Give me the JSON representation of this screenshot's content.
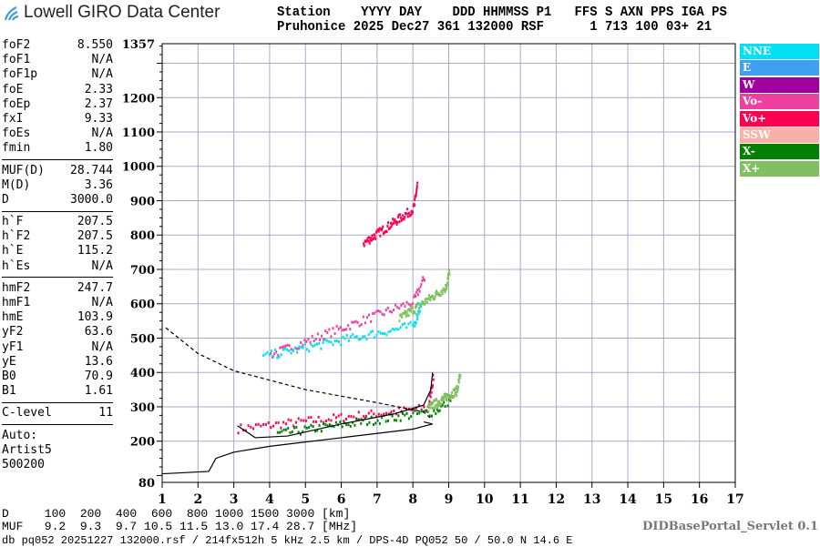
{
  "header": {
    "logo_text": "Lowell GIRO Data Center",
    "line1": "Station    YYYY DAY    DDD HHMMSS P1   FFS S AXN PPS IGA PS",
    "line2": "Pruhonice 2025 Dec27 361 132000 RSF      1 713 100 03+ 21"
  },
  "params": [
    [
      {
        "k": "foF2",
        "v": "8.550"
      },
      {
        "k": "foF1",
        "v": "N/A"
      },
      {
        "k": "foF1p",
        "v": "N/A"
      },
      {
        "k": "foE",
        "v": "2.33"
      },
      {
        "k": "foEp",
        "v": "2.37"
      },
      {
        "k": "fxI",
        "v": "9.33"
      },
      {
        "k": "foEs",
        "v": "N/A"
      },
      {
        "k": "fmin",
        "v": "1.80"
      }
    ],
    [
      {
        "k": "MUF(D)",
        "v": "28.744"
      },
      {
        "k": "M(D)",
        "v": "3.36"
      },
      {
        "k": "D",
        "v": "3000.0"
      }
    ],
    [
      {
        "k": "h`F",
        "v": "207.5"
      },
      {
        "k": "h`F2",
        "v": "207.5"
      },
      {
        "k": "h`E",
        "v": "115.2"
      },
      {
        "k": "h`Es",
        "v": "N/A"
      }
    ],
    [
      {
        "k": "hmF2",
        "v": "247.7"
      },
      {
        "k": "hmF1",
        "v": "N/A"
      },
      {
        "k": "hmE",
        "v": "103.9"
      },
      {
        "k": "yF2",
        "v": "63.6"
      },
      {
        "k": "yF1",
        "v": "N/A"
      },
      {
        "k": "yE",
        "v": "13.6"
      },
      {
        "k": "B0",
        "v": "70.9"
      },
      {
        "k": "B1",
        "v": "1.61"
      }
    ],
    [
      {
        "k": "C-level",
        "v": "11"
      }
    ]
  ],
  "autoscale": {
    "l1": "Auto:",
    "l2": "Artist5",
    "l3": "500200"
  },
  "legend": [
    {
      "label": "NNE",
      "color": "#00e0f0"
    },
    {
      "label": "E",
      "color": "#40a0f0"
    },
    {
      "label": "W",
      "color": "#a000a0"
    },
    {
      "label": "Vo-",
      "color": "#f0409f"
    },
    {
      "label": "Vo+",
      "color": "#ff0050"
    },
    {
      "label": "SSW",
      "color": "#f8b0a8"
    },
    {
      "label": "X-",
      "color": "#008000"
    },
    {
      "label": "X+",
      "color": "#80c060"
    }
  ],
  "bottom": {
    "d_row": "D     100  200  400  600  800 1000 1500 3000 [km]",
    "muf_row": "MUF   9.2  9.3  9.7 10.5 11.5 13.0 17.4 28.7 [MHz]",
    "servlet": "DIDBasePortal_Servlet 0.1",
    "db_line": "db pq052 20251227 132000.rsf / 214fx512h 5 kHz 2.5 km / DPS-4D PQ052 50 / 50.0 N 14.6 E"
  },
  "chart_data": {
    "type": "scatter",
    "xlim": [
      1,
      17
    ],
    "ylim": [
      80,
      1357
    ],
    "xticks": [
      1,
      2,
      3,
      4,
      5,
      6,
      7,
      8,
      9,
      10,
      11,
      12,
      13,
      14,
      15,
      16,
      17
    ],
    "yticks": [
      80,
      200,
      300,
      400,
      500,
      600,
      700,
      800,
      900,
      1000,
      1100,
      1200,
      1357
    ],
    "grid": true,
    "traces": [
      {
        "pol": "Vo+",
        "color": "#ff0050",
        "from": [
          3.1,
          240
        ],
        "to": [
          8.4,
          300
        ],
        "end": [
          8.55,
          390
        ]
      },
      {
        "pol": "Vo-",
        "color": "#f0409f",
        "from": [
          4.0,
          455
        ],
        "to": [
          8.0,
          610
        ],
        "end": [
          8.3,
          680
        ]
      },
      {
        "pol": "Vo+",
        "color": "#ff0050",
        "from": [
          6.6,
          780
        ],
        "to": [
          8.0,
          880
        ],
        "end": [
          8.1,
          950
        ]
      },
      {
        "pol": "X-",
        "color": "#008000",
        "from": [
          4.2,
          225
        ],
        "to": [
          8.6,
          290
        ],
        "end": [
          9.1,
          330
        ]
      },
      {
        "pol": "X+",
        "color": "#80c060",
        "from": [
          8.4,
          300
        ],
        "to": [
          9.2,
          350
        ],
        "end": [
          9.3,
          400
        ]
      },
      {
        "pol": "X+",
        "color": "#80c060",
        "from": [
          7.6,
          560
        ],
        "to": [
          8.9,
          650
        ],
        "end": [
          9.0,
          700
        ]
      },
      {
        "pol": "NNE",
        "color": "#00e0f0",
        "from": [
          3.8,
          450
        ],
        "to": [
          8.0,
          540
        ],
        "end": [
          8.2,
          600
        ]
      }
    ],
    "profile": [
      [
        1.0,
        105
      ],
      [
        2.3,
        112
      ],
      [
        2.5,
        150
      ],
      [
        3,
        168
      ],
      [
        4,
        185
      ],
      [
        6,
        210
      ],
      [
        8,
        235
      ],
      [
        8.55,
        250
      ],
      [
        8.3,
        256
      ]
    ],
    "o_trace_fit": [
      [
        3.1,
        245
      ],
      [
        3.6,
        210
      ],
      [
        4.5,
        215
      ],
      [
        6,
        250
      ],
      [
        7.5,
        280
      ],
      [
        8.3,
        305
      ],
      [
        8.5,
        350
      ],
      [
        8.55,
        400
      ]
    ],
    "muf_dashed": [
      [
        1.1,
        530
      ],
      [
        2,
        455
      ],
      [
        3,
        405
      ],
      [
        5,
        350
      ],
      [
        7,
        312
      ],
      [
        8.3,
        285
      ],
      [
        8.55,
        262
      ]
    ]
  }
}
